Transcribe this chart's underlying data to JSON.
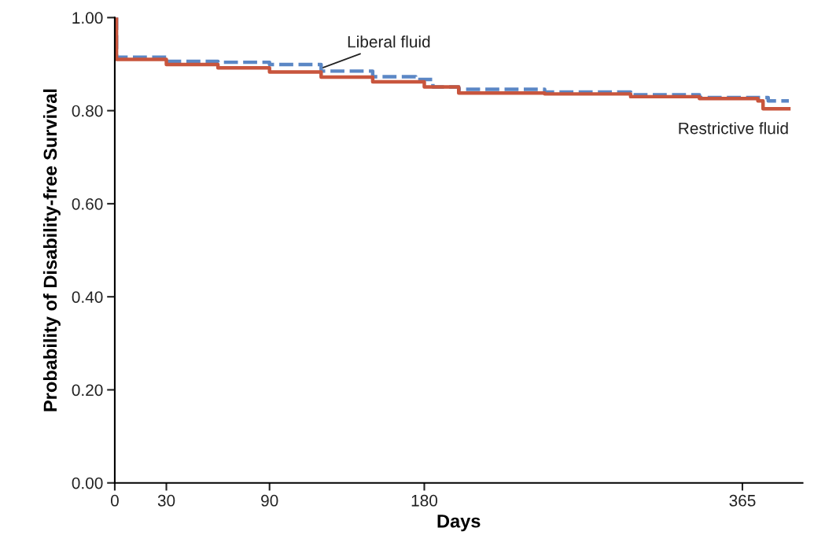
{
  "chart_data": {
    "type": "step",
    "xlabel": "Days",
    "ylabel": "Probability of Disability-free Survival",
    "xlim": [
      0,
      400
    ],
    "xticks": [
      0,
      30,
      90,
      180,
      365
    ],
    "ylim": [
      0,
      1.0
    ],
    "yticks": [
      {
        "value": 0,
        "label": "0.00"
      },
      {
        "value": 0.2,
        "label": "0.20"
      },
      {
        "value": 0.4,
        "label": "0.40"
      },
      {
        "value": 0.6,
        "label": "0.60"
      },
      {
        "value": 0.8,
        "label": "0.80"
      },
      {
        "value": 1.0,
        "label": "1.00"
      }
    ],
    "grid": false,
    "legend": false,
    "marker": "none",
    "series": [
      {
        "name": "Liberal fluid",
        "color": "#5b87c5",
        "line_style": "dashed",
        "x": [
          0,
          1,
          30,
          60,
          90,
          120,
          150,
          175,
          185,
          200,
          250,
          300,
          340,
          380,
          392
        ],
        "values": [
          1.0,
          0.915,
          0.906,
          0.904,
          0.899,
          0.885,
          0.873,
          0.867,
          0.851,
          0.846,
          0.84,
          0.834,
          0.828,
          0.821,
          0.821
        ]
      },
      {
        "name": "Restrictive fluid",
        "color": "#c8553d",
        "line_style": "solid",
        "x": [
          0,
          1,
          30,
          60,
          90,
          120,
          150,
          180,
          200,
          250,
          300,
          340,
          374,
          377,
          392
        ],
        "values": [
          1.0,
          0.91,
          0.899,
          0.892,
          0.883,
          0.872,
          0.862,
          0.851,
          0.838,
          0.836,
          0.83,
          0.826,
          0.821,
          0.804,
          0.804
        ]
      }
    ]
  }
}
